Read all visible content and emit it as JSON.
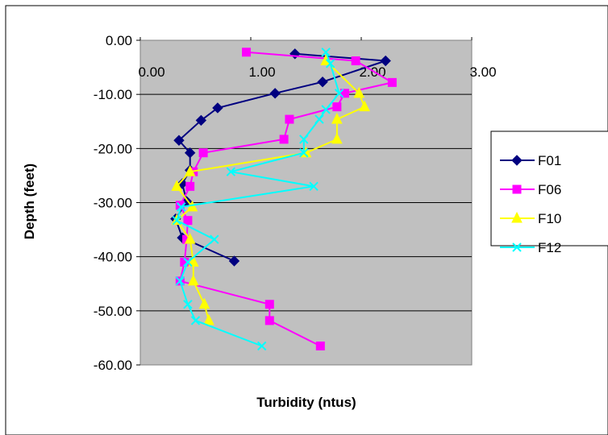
{
  "chart_data": {
    "type": "line",
    "title": "",
    "xlabel": "Turbidity (ntus)",
    "ylabel": "Depth (feet)",
    "xlim": [
      0,
      3
    ],
    "ylim": [
      -60,
      0
    ],
    "x_ticks": [
      "0.00",
      "1.00",
      "2.00",
      "3.00"
    ],
    "y_ticks": [
      "0.00",
      "-10.00",
      "-20.00",
      "-30.00",
      "-40.00",
      "-50.00",
      "-60.00"
    ],
    "x_axis_position": "top",
    "grid": "horizontal",
    "plot_background": "#c0c0c0",
    "legend_position": "right",
    "series": [
      {
        "name": "F01",
        "color": "#000080",
        "marker": "diamond",
        "points": [
          {
            "x": 1.4,
            "y": -2.5
          },
          {
            "x": 2.22,
            "y": -3.8
          },
          {
            "x": 1.65,
            "y": -7.7
          },
          {
            "x": 1.22,
            "y": -9.8
          },
          {
            "x": 0.7,
            "y": -12.5
          },
          {
            "x": 0.55,
            "y": -14.8
          },
          {
            "x": 0.35,
            "y": -18.5
          },
          {
            "x": 0.45,
            "y": -20.8
          },
          {
            "x": 0.45,
            "y": -24.0
          },
          {
            "x": 0.38,
            "y": -26.5
          },
          {
            "x": 0.42,
            "y": -29.8
          },
          {
            "x": 0.32,
            "y": -33.0
          },
          {
            "x": 0.38,
            "y": -36.5
          },
          {
            "x": 0.85,
            "y": -40.8
          }
        ]
      },
      {
        "name": "F06",
        "color": "#ff00ff",
        "marker": "square",
        "points": [
          {
            "x": 0.96,
            "y": -2.2
          },
          {
            "x": 1.95,
            "y": -3.8
          },
          {
            "x": 2.28,
            "y": -7.8
          },
          {
            "x": 1.85,
            "y": -9.8
          },
          {
            "x": 1.78,
            "y": -12.3
          },
          {
            "x": 1.35,
            "y": -14.6
          },
          {
            "x": 1.3,
            "y": -18.3
          },
          {
            "x": 0.57,
            "y": -20.8
          },
          {
            "x": 0.48,
            "y": -24.3
          },
          {
            "x": 0.45,
            "y": -27.0
          },
          {
            "x": 0.36,
            "y": -30.5
          },
          {
            "x": 0.43,
            "y": -33.3
          },
          {
            "x": 0.42,
            "y": -36.8
          },
          {
            "x": 0.4,
            "y": -41.0
          },
          {
            "x": 0.36,
            "y": -44.5
          },
          {
            "x": 1.17,
            "y": -48.8
          },
          {
            "x": 1.17,
            "y": -51.8
          },
          {
            "x": 1.63,
            "y": -56.5
          }
        ]
      },
      {
        "name": "F10",
        "color": "#ffff00",
        "marker": "triangle",
        "points": [
          {
            "x": 1.68,
            "y": -3.8
          },
          {
            "x": 1.98,
            "y": -9.8
          },
          {
            "x": 2.03,
            "y": -12.3
          },
          {
            "x": 1.78,
            "y": -14.6
          },
          {
            "x": 1.78,
            "y": -18.3
          },
          {
            "x": 1.5,
            "y": -20.8
          },
          {
            "x": 0.45,
            "y": -24.3
          },
          {
            "x": 0.33,
            "y": -27.0
          },
          {
            "x": 0.47,
            "y": -30.8
          },
          {
            "x": 0.33,
            "y": -33.3
          },
          {
            "x": 0.45,
            "y": -36.8
          },
          {
            "x": 0.48,
            "y": -41.0
          },
          {
            "x": 0.48,
            "y": -44.5
          },
          {
            "x": 0.58,
            "y": -48.8
          },
          {
            "x": 0.62,
            "y": -51.8
          }
        ]
      },
      {
        "name": "F12",
        "color": "#00ffff",
        "marker": "x",
        "points": [
          {
            "x": 1.68,
            "y": -2.2
          },
          {
            "x": 1.72,
            "y": -4.3
          },
          {
            "x": 1.8,
            "y": -9.8
          },
          {
            "x": 1.68,
            "y": -12.8
          },
          {
            "x": 1.62,
            "y": -14.6
          },
          {
            "x": 1.48,
            "y": -18.3
          },
          {
            "x": 1.48,
            "y": -20.8
          },
          {
            "x": 0.82,
            "y": -24.3
          },
          {
            "x": 1.57,
            "y": -27.0
          },
          {
            "x": 0.37,
            "y": -30.8
          },
          {
            "x": 0.33,
            "y": -33.3
          },
          {
            "x": 0.67,
            "y": -36.8
          },
          {
            "x": 0.43,
            "y": -41.0
          },
          {
            "x": 0.36,
            "y": -44.5
          },
          {
            "x": 0.43,
            "y": -48.8
          },
          {
            "x": 0.5,
            "y": -51.8
          },
          {
            "x": 1.1,
            "y": -56.5
          }
        ]
      }
    ]
  }
}
